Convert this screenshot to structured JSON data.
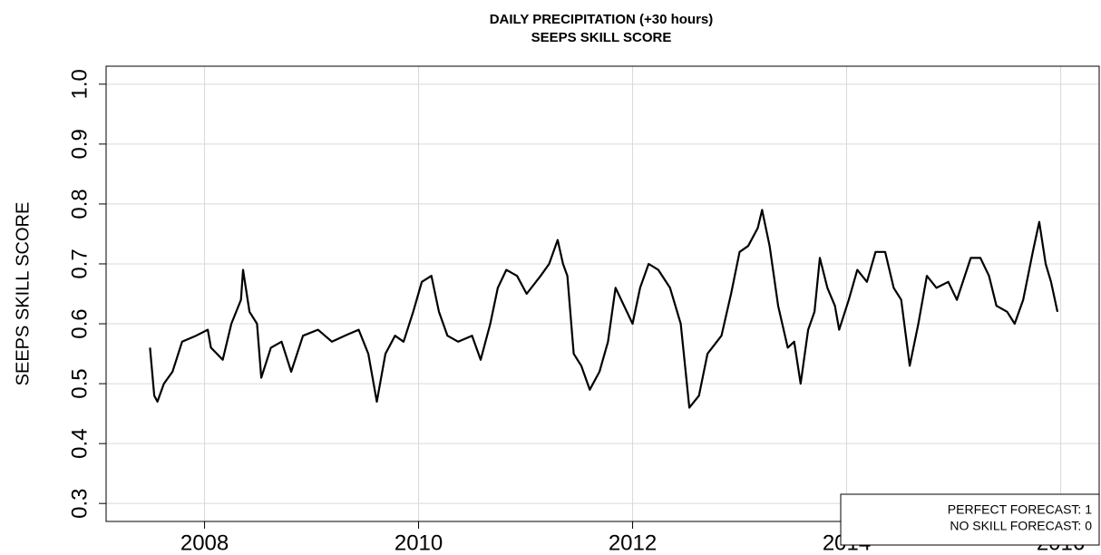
{
  "chart_data": {
    "type": "line",
    "title": "DAILY PRECIPITATION (+30 hours)",
    "subtitle": "SEEPS SKILL SCORE",
    "y_label": "SEEPS SKILL SCORE",
    "annotations": [
      "PERFECT FORECAST: 1",
      "NO SKILL FORECAST: 0"
    ],
    "color": "#000000",
    "grid": true,
    "xlim": [
      2007.08,
      2016.36
    ],
    "xticks": [
      2008,
      2010,
      2012,
      2014,
      2016
    ],
    "ylim": [
      0.27,
      1.03
    ],
    "yticks": [
      0.3,
      0.4,
      0.5,
      0.6,
      0.7,
      0.8,
      0.9,
      {
        "value": 1,
        "label": "1.0"
      }
    ],
    "x": [
      2007.49,
      2007.53,
      2007.56,
      2007.62,
      2007.7,
      2007.79,
      2007.92,
      2008.03,
      2008.06,
      2008.17,
      2008.25,
      2008.34,
      2008.36,
      2008.42,
      2008.49,
      2008.53,
      2008.62,
      2008.72,
      2008.81,
      2008.92,
      2009.06,
      2009.19,
      2009.31,
      2009.44,
      2009.53,
      2009.61,
      2009.69,
      2009.78,
      2009.86,
      2009.95,
      2010.03,
      2010.12,
      2010.19,
      2010.27,
      2010.37,
      2010.5,
      2010.58,
      2010.67,
      2010.74,
      2010.82,
      2010.92,
      2011.01,
      2011.14,
      2011.22,
      2011.3,
      2011.35,
      2011.39,
      2011.45,
      2011.52,
      2011.6,
      2011.69,
      2011.77,
      2011.84,
      2011.92,
      2012.0,
      2012.07,
      2012.15,
      2012.24,
      2012.35,
      2012.45,
      2012.53,
      2012.62,
      2012.7,
      2012.83,
      2012.92,
      2013.0,
      2013.08,
      2013.17,
      2013.21,
      2013.28,
      2013.36,
      2013.45,
      2013.51,
      2013.57,
      2013.64,
      2013.7,
      2013.75,
      2013.82,
      2013.89,
      2013.93,
      2014.02,
      2014.1,
      2014.19,
      2014.27,
      2014.36,
      2014.44,
      2014.51,
      2014.59,
      2014.67,
      2014.75,
      2014.84,
      2014.95,
      2015.03,
      2015.16,
      2015.25,
      2015.33,
      2015.4,
      2015.5,
      2015.57,
      2015.65,
      2015.74,
      2015.8,
      2015.86,
      2015.91,
      2015.97
    ],
    "values": [
      0.56,
      0.48,
      0.47,
      0.5,
      0.52,
      0.57,
      0.58,
      0.59,
      0.56,
      0.54,
      0.6,
      0.64,
      0.69,
      0.62,
      0.6,
      0.51,
      0.56,
      0.57,
      0.52,
      0.58,
      0.59,
      0.57,
      0.58,
      0.59,
      0.55,
      0.47,
      0.55,
      0.58,
      0.57,
      0.62,
      0.67,
      0.68,
      0.62,
      0.58,
      0.57,
      0.58,
      0.54,
      0.6,
      0.66,
      0.69,
      0.68,
      0.65,
      0.68,
      0.7,
      0.74,
      0.7,
      0.68,
      0.55,
      0.53,
      0.49,
      0.52,
      0.57,
      0.66,
      0.63,
      0.6,
      0.66,
      0.7,
      0.69,
      0.66,
      0.6,
      0.46,
      0.48,
      0.55,
      0.58,
      0.65,
      0.72,
      0.73,
      0.76,
      0.79,
      0.73,
      0.63,
      0.56,
      0.57,
      0.5,
      0.59,
      0.62,
      0.71,
      0.66,
      0.63,
      0.59,
      0.64,
      0.69,
      0.67,
      0.72,
      0.72,
      0.66,
      0.64,
      0.53,
      0.6,
      0.68,
      0.66,
      0.67,
      0.64,
      0.71,
      0.71,
      0.68,
      0.63,
      0.62,
      0.6,
      0.64,
      0.72,
      0.77,
      0.7,
      0.67,
      0.62
    ]
  }
}
